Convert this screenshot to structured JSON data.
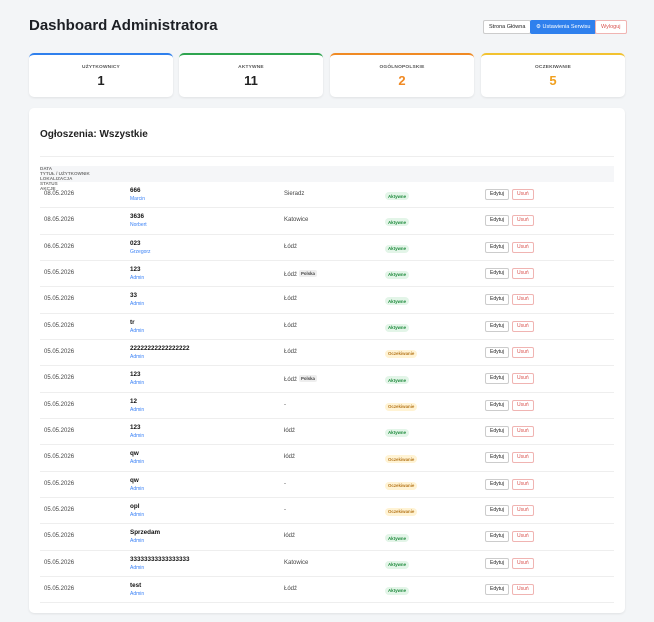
{
  "header": {
    "title": "Dashboard Administratora",
    "buttons": [
      "Strona Główna",
      "Ustawienia Serwisu",
      "Wyloguj"
    ]
  },
  "stats": [
    {
      "label": "UŻYTKOWNICY",
      "value": "1"
    },
    {
      "label": "AKTYWNE",
      "value": "11"
    },
    {
      "label": "OGÓLNOPOLSKIE",
      "value": "2"
    },
    {
      "label": "OCZEKIWANIE",
      "value": "5"
    }
  ],
  "table": {
    "title": "Ogłoszenia: Wszystkie",
    "columns": [
      "DATA",
      "TYTUŁ / UŻYTKOWNIK",
      "LOKALIZACJA",
      "STATUS",
      "AKCJE"
    ],
    "actions": [
      "Edytuj",
      "Usuń"
    ],
    "rows": [
      {
        "date": "08.05.2026",
        "title": "666",
        "user": "Marcin",
        "location": "Sieradz",
        "status": "Aktywne"
      },
      {
        "date": "08.05.2026",
        "title": "3636",
        "user": "Norbert",
        "location": "Katowice",
        "status": "Aktywne"
      },
      {
        "date": "06.05.2026",
        "title": "023",
        "user": "Grzegorz",
        "location": "Łódź",
        "status": "Aktywne"
      },
      {
        "date": "05.05.2026",
        "title": "123",
        "user": "Admin",
        "location": "Łódź",
        "badge": "Polska",
        "status": "Aktywne"
      },
      {
        "date": "05.05.2026",
        "title": "33",
        "user": "Admin",
        "location": "Łódź",
        "status": "Aktywne"
      },
      {
        "date": "05.05.2026",
        "title": "tr",
        "user": "Admin",
        "location": "Łódź",
        "status": "Aktywne"
      },
      {
        "date": "05.05.2026",
        "title": "22222222222222222",
        "user": "Admin",
        "location": "Łódź",
        "status": "Oczekiwanie"
      },
      {
        "date": "05.05.2026",
        "title": "123",
        "user": "Admin",
        "location": "Łódź",
        "badge": "Polska",
        "status": "Aktywne"
      },
      {
        "date": "05.05.2026",
        "title": "12",
        "user": "Admin",
        "location": "-",
        "status": "Oczekiwanie"
      },
      {
        "date": "05.05.2026",
        "title": "123",
        "user": "Admin",
        "location": "łódź",
        "status": "Aktywne"
      },
      {
        "date": "05.05.2026",
        "title": "qw",
        "user": "Admin",
        "location": "łódź",
        "status": "Oczekiwanie"
      },
      {
        "date": "05.05.2026",
        "title": "qw",
        "user": "Admin",
        "location": "-",
        "status": "Oczekiwanie"
      },
      {
        "date": "05.05.2026",
        "title": "opl",
        "user": "Admin",
        "location": "-",
        "status": "Oczekiwanie"
      },
      {
        "date": "05.05.2026",
        "title": "Sprzedam",
        "user": "Admin",
        "location": "łódź",
        "status": "Aktywne"
      },
      {
        "date": "05.05.2026",
        "title": "33333333333333333",
        "user": "Admin",
        "location": "Katowice",
        "status": "Aktywne"
      },
      {
        "date": "05.05.2026",
        "title": "test",
        "user": "Admin",
        "location": "Łódź",
        "status": "Aktywne"
      }
    ]
  }
}
